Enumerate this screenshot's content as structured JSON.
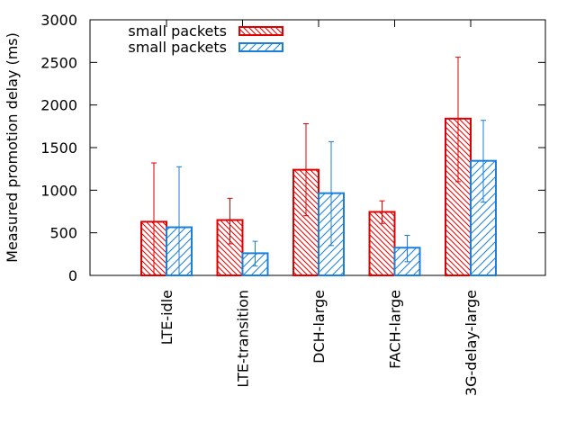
{
  "colors": {
    "series_1": "#e00000",
    "series_2": "#1a7fd8",
    "axis": "#000000"
  },
  "chart_data": {
    "type": "bar",
    "title": "",
    "xlabel": "",
    "ylabel": "Measured promotion delay (ms)",
    "ylim": [
      0,
      3000
    ],
    "yticks": [
      0,
      500,
      1000,
      1500,
      2000,
      2500,
      3000
    ],
    "grid": false,
    "legend_position": "top-left",
    "categories": [
      "LTE-idle",
      "LTE-transition",
      "DCH-large",
      "FACH-large",
      "3G-delay-large"
    ],
    "series": [
      {
        "name": "small packets",
        "pattern": "dense-backslash-hatch",
        "values": [
          630,
          650,
          1240,
          745,
          1840
        ],
        "error_low": [
          0,
          370,
          700,
          610,
          1100
        ],
        "error_high": [
          1320,
          905,
          1780,
          875,
          2560
        ]
      },
      {
        "name": "small packets",
        "pattern": "sparse-slash-hatch",
        "values": [
          565,
          260,
          965,
          325,
          1345
        ],
        "error_low": [
          0,
          110,
          350,
          160,
          860
        ],
        "error_high": [
          1275,
          400,
          1570,
          470,
          1820
        ]
      }
    ]
  }
}
